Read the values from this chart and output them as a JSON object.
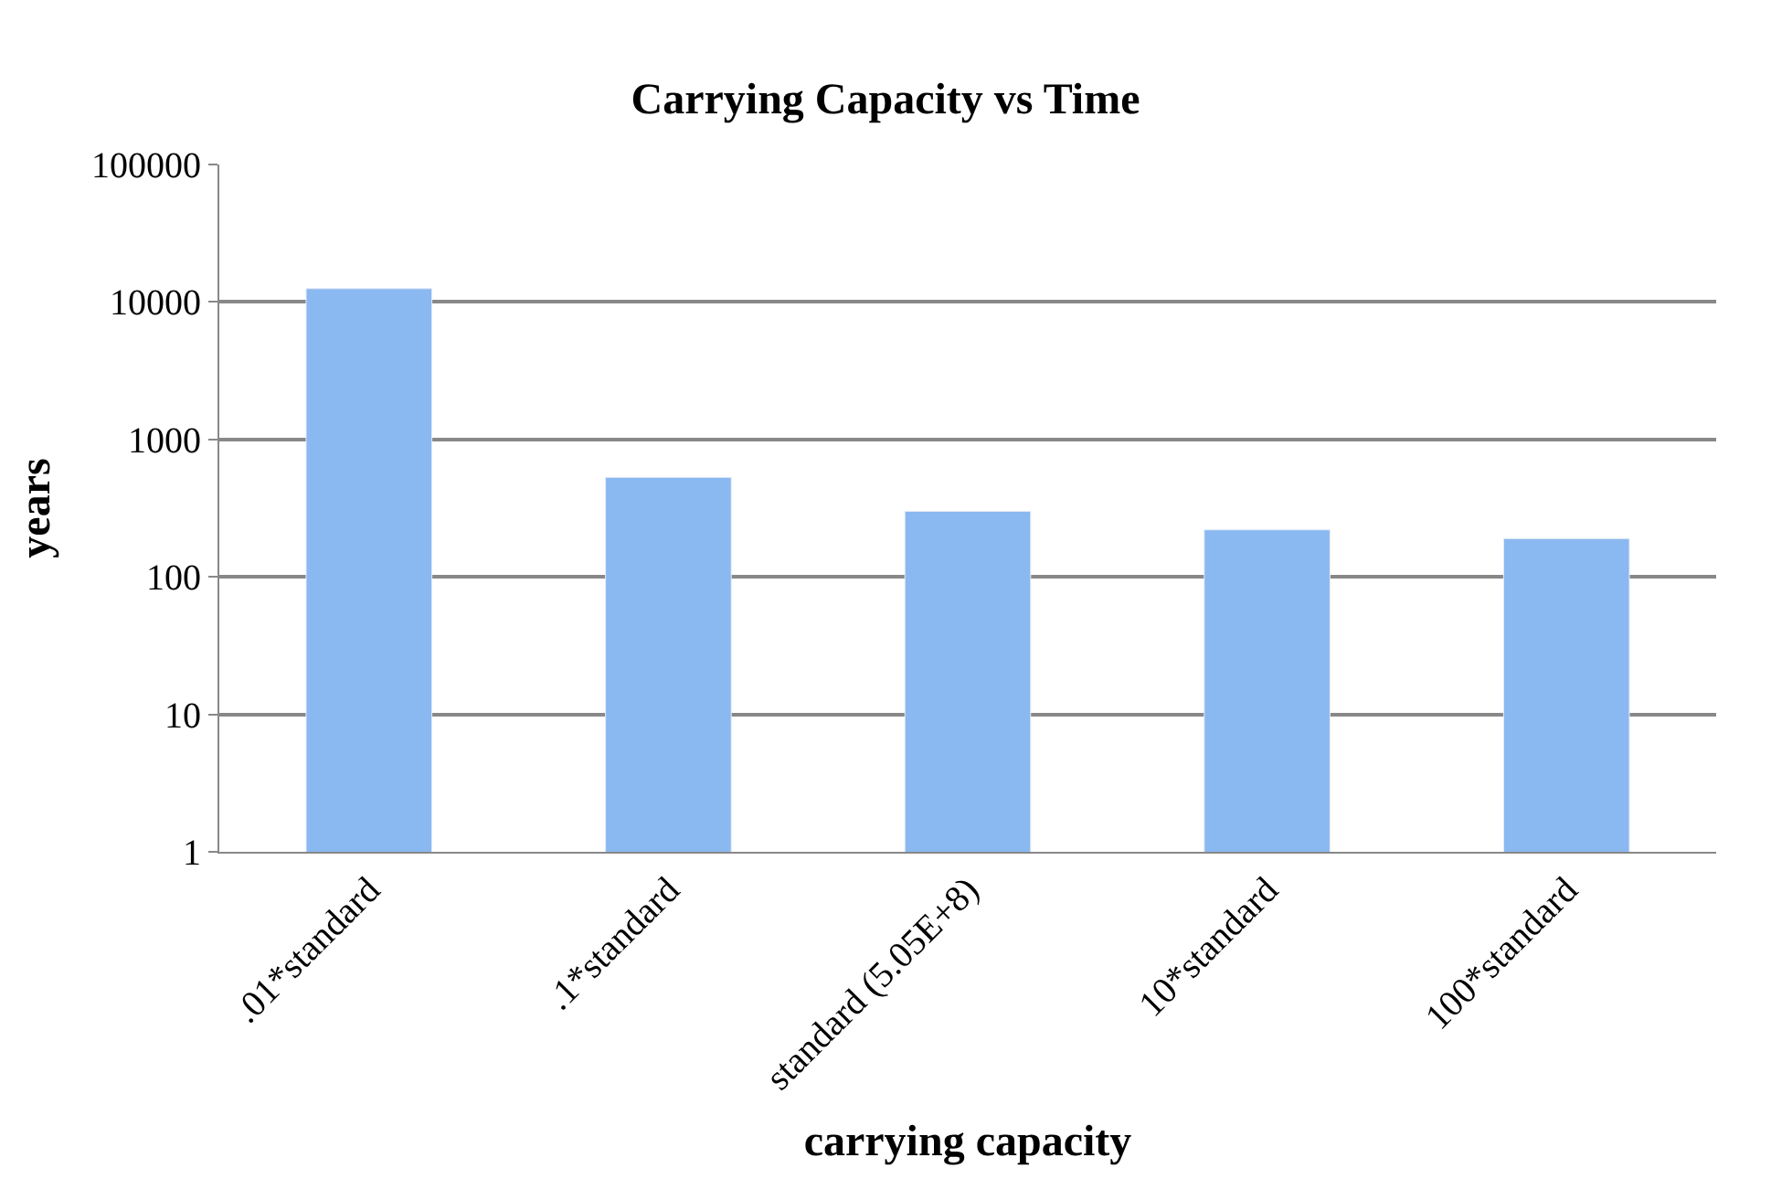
{
  "chart_data": {
    "type": "bar",
    "title": "Carrying Capacity vs Time",
    "xlabel": "carrying capacity",
    "ylabel": "years",
    "categories": [
      ".01*standard",
      ".1*standard",
      "standard (5.05E+8)",
      "10*standard",
      "100*standard"
    ],
    "values": [
      12500,
      530,
      300,
      220,
      190
    ],
    "color": "#8ab8f0",
    "log": "y",
    "ylim": [
      1,
      100000
    ],
    "yticks": [
      1,
      10,
      100,
      1000,
      10000,
      100000
    ],
    "grid": "y",
    "legend": false
  }
}
